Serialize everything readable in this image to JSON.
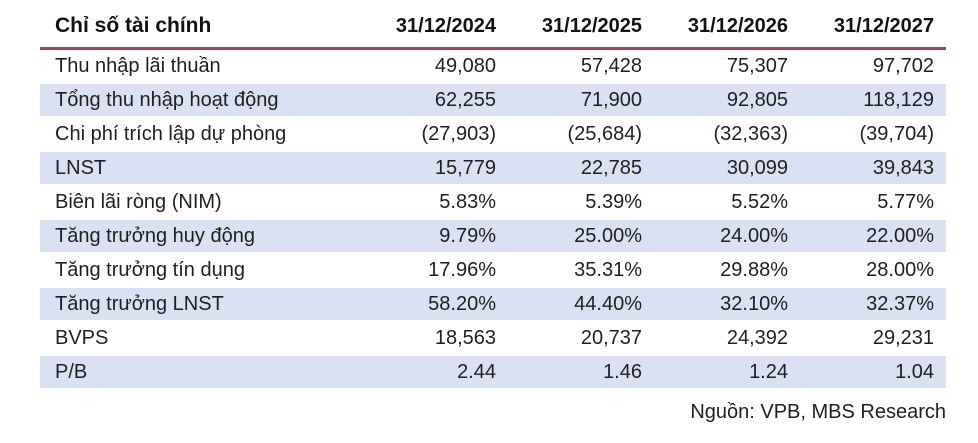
{
  "table": {
    "header": {
      "label": "Chỉ số tài chính",
      "cols": [
        "31/12/2024",
        "31/12/2025",
        "31/12/2026",
        "31/12/2027"
      ]
    },
    "rows": [
      {
        "label": "Thu nhập lãi thuần",
        "values": [
          "49,080",
          "57,428",
          "75,307",
          "97,702"
        ]
      },
      {
        "label": "Tổng thu nhập hoạt động",
        "values": [
          "62,255",
          "71,900",
          "92,805",
          "118,129"
        ]
      },
      {
        "label": "Chi phí trích lập dự phòng",
        "values": [
          "(27,903)",
          "(25,684)",
          "(32,363)",
          "(39,704)"
        ]
      },
      {
        "label": "LNST",
        "values": [
          "15,779",
          "22,785",
          "30,099",
          "39,843"
        ]
      },
      {
        "label": "Biên lãi ròng (NIM)",
        "values": [
          "5.83%",
          "5.39%",
          "5.52%",
          "5.77%"
        ]
      },
      {
        "label": "Tăng trưởng huy động",
        "values": [
          "9.79%",
          "25.00%",
          "24.00%",
          "22.00%"
        ]
      },
      {
        "label": "Tăng trưởng tín dụng",
        "values": [
          "17.96%",
          "35.31%",
          "29.88%",
          "28.00%"
        ]
      },
      {
        "label": "Tăng trưởng LNST",
        "values": [
          "58.20%",
          "44.40%",
          "32.10%",
          "32.37%"
        ]
      },
      {
        "label": "BVPS",
        "values": [
          "18,563",
          "20,737",
          "24,392",
          "29,231"
        ]
      },
      {
        "label": "P/B",
        "values": [
          "2.44",
          "1.46",
          "1.24",
          "1.04"
        ]
      }
    ]
  },
  "footer": {
    "source": "Nguồn: VPB, MBS Research"
  },
  "colors": {
    "accent_rule": "#B23A55",
    "row_stripe": "#D9E1F2",
    "text": "#1F1F1F"
  }
}
